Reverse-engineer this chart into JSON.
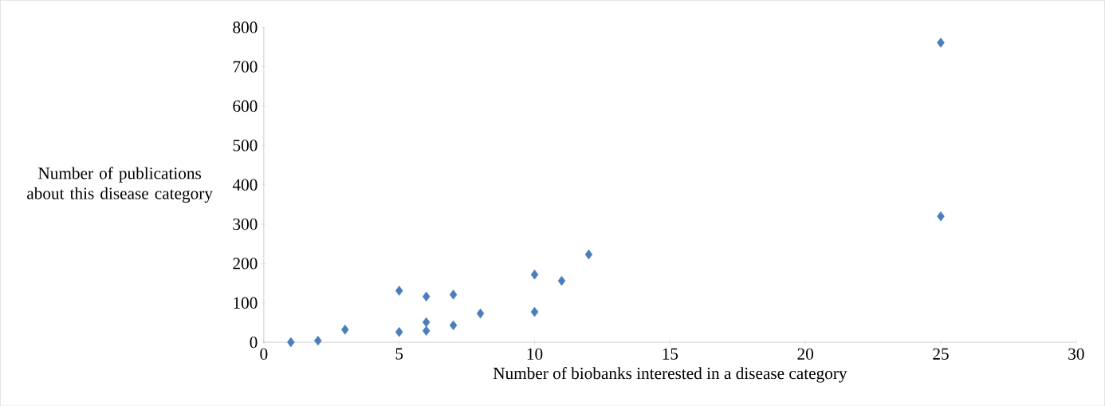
{
  "chart_data": {
    "type": "scatter",
    "xlabel": "Number of biobanks interested in a disease category",
    "ylabel": "Number of publications about this disease category",
    "x": [
      1,
      2,
      3,
      5,
      5,
      6,
      6,
      6,
      7,
      7,
      8,
      10,
      10,
      11,
      12,
      25,
      25
    ],
    "values": [
      0,
      4,
      32,
      131,
      26,
      116,
      51,
      29,
      121,
      43,
      73,
      172,
      77,
      156,
      223,
      761,
      320
    ],
    "color": "#4a7ebb",
    "marker": "diamond",
    "xlim": [
      0,
      30
    ],
    "xticks": [
      0,
      5,
      10,
      15,
      20,
      25,
      30
    ],
    "ylim": [
      0,
      800
    ],
    "yticks": [
      0,
      100,
      200,
      300,
      400,
      500,
      600,
      700,
      800
    ]
  }
}
